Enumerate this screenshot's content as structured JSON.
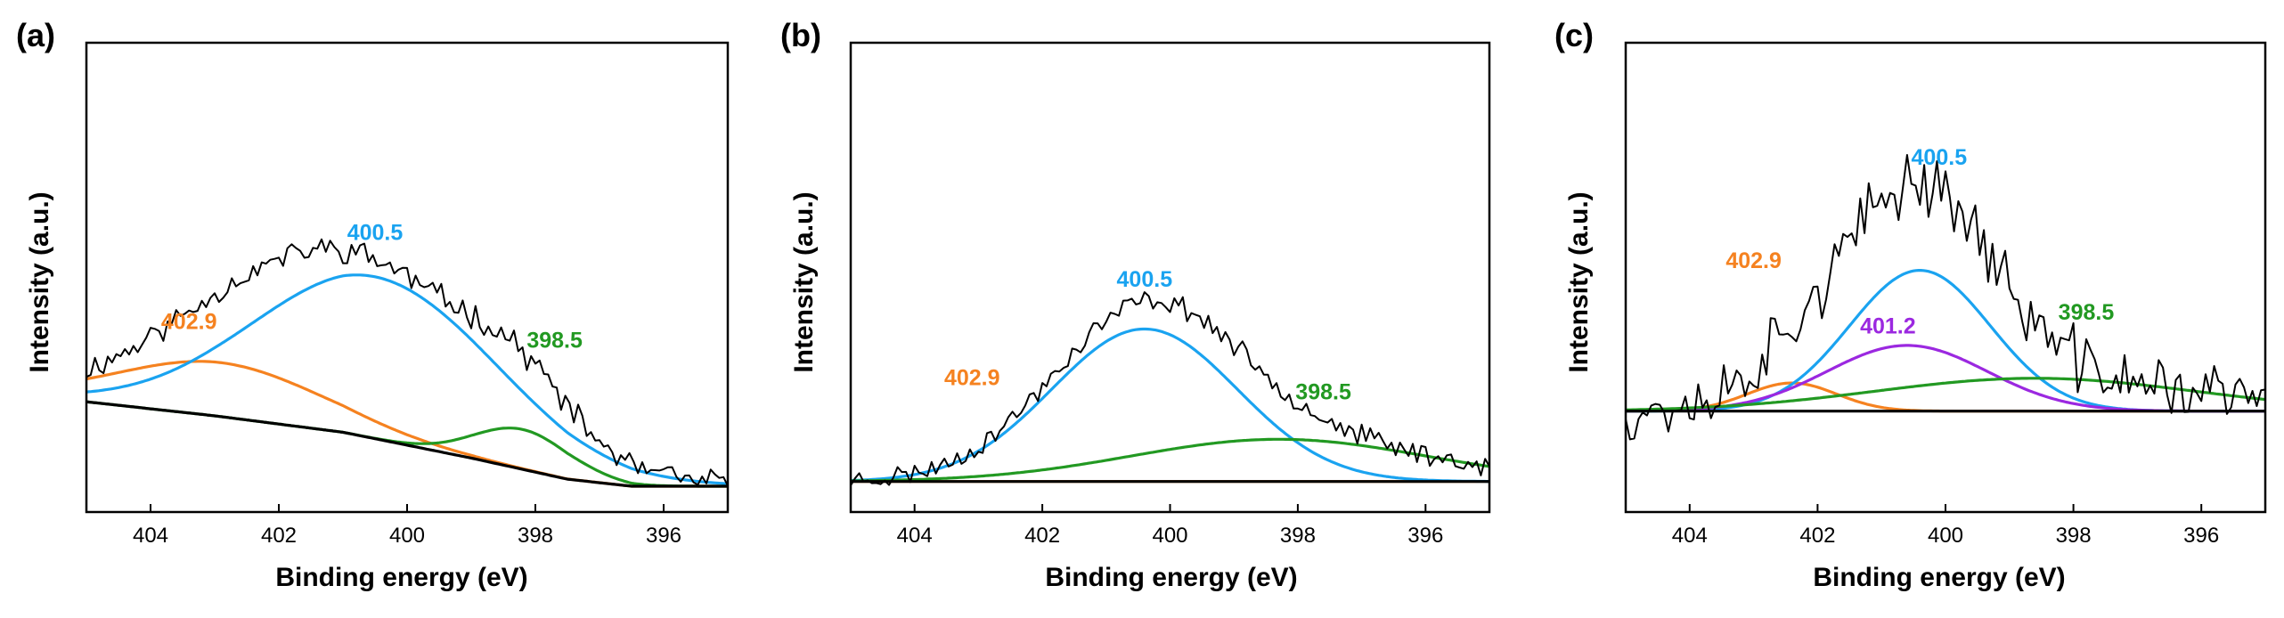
{
  "chart_data": [
    {
      "panel": "(a)",
      "type": "line",
      "xlabel": "Binding energy (eV)",
      "ylabel": "Intensity (a.u.)",
      "xlim": [
        405,
        395
      ],
      "ylim": [
        0,
        1
      ],
      "xticks": [
        404,
        402,
        400,
        398,
        396
      ],
      "xtick_labels": [
        "404",
        "402",
        "400",
        "398",
        "396"
      ],
      "series": [
        {
          "name": "data",
          "color": "#000000",
          "kind": "data",
          "noise": 0.022,
          "seed": 11,
          "sum": [
            "baseline",
            "402.9",
            "400.5",
            "398.5"
          ]
        },
        {
          "name": "baseline",
          "color": "#000000",
          "kind": "baseline",
          "x": [
            405,
            403,
            401,
            399,
            397.5,
            396.5,
            395
          ],
          "y": [
            0.235,
            0.205,
            0.17,
            0.115,
            0.07,
            0.055,
            0.055
          ]
        },
        {
          "name": "402.9",
          "color": "#F58220",
          "kind": "peak",
          "center": 402.9,
          "height": 0.115,
          "width": 1.6,
          "label": "402.9"
        },
        {
          "name": "400.5",
          "color": "#1AA3F0",
          "kind": "peak",
          "center": 400.5,
          "height": 0.345,
          "width": 1.9,
          "label": "400.5"
        },
        {
          "name": "398.5",
          "color": "#229922",
          "kind": "peak",
          "center": 398.2,
          "height": 0.085,
          "width": 0.75,
          "label": "398.5"
        }
      ],
      "annotations": [
        {
          "text": "400.5",
          "color": "#1AA3F0",
          "x": 400.5,
          "y": 0.58
        },
        {
          "text": "402.9",
          "color": "#F58220",
          "x": 403.4,
          "y": 0.39
        },
        {
          "text": "398.5",
          "color": "#229922",
          "x": 397.7,
          "y": 0.35
        }
      ]
    },
    {
      "panel": "(b)",
      "type": "line",
      "xlabel": "Binding energy (eV)",
      "ylabel": "Intensity (a.u.)",
      "xlim": [
        405,
        395
      ],
      "ylim": [
        0,
        1
      ],
      "xticks": [
        404,
        402,
        400,
        398,
        396
      ],
      "xtick_labels": [
        "404",
        "402",
        "400",
        "398",
        "396"
      ],
      "series": [
        {
          "name": "data",
          "color": "#000000",
          "kind": "data",
          "noise": 0.018,
          "seed": 23,
          "sum": [
            "baseline",
            "400.5",
            "398.5"
          ]
        },
        {
          "name": "baseline",
          "color": "#000000",
          "kind": "baseline",
          "x": [
            405,
            395
          ],
          "y": [
            0.065,
            0.065
          ]
        },
        {
          "name": "402.9",
          "color": "#F58220",
          "kind": "peak",
          "center": 402.9,
          "height": 0.0,
          "width": 1.5,
          "label": "402.9"
        },
        {
          "name": "400.5",
          "color": "#1AA3F0",
          "kind": "peak",
          "center": 400.4,
          "height": 0.325,
          "width": 1.45,
          "label": "400.5"
        },
        {
          "name": "398.5",
          "color": "#229922",
          "kind": "peak",
          "center": 398.3,
          "height": 0.09,
          "width": 2.3,
          "label": "398.5"
        }
      ],
      "annotations": [
        {
          "text": "400.5",
          "color": "#1AA3F0",
          "x": 400.4,
          "y": 0.48
        },
        {
          "text": "402.9",
          "color": "#F58220",
          "x": 403.1,
          "y": 0.27
        },
        {
          "text": "398.5",
          "color": "#229922",
          "x": 397.6,
          "y": 0.24
        }
      ]
    },
    {
      "panel": "(c)",
      "type": "line",
      "xlabel": "Binding energy (eV)",
      "ylabel": "Intensity (a.u.)",
      "xlim": [
        405,
        395
      ],
      "ylim": [
        0,
        1
      ],
      "xticks": [
        404,
        402,
        400,
        398,
        396
      ],
      "xtick_labels": [
        "404",
        "402",
        "400",
        "398",
        "396"
      ],
      "series": [
        {
          "name": "data",
          "color": "#000000",
          "kind": "data",
          "noise": 0.055,
          "seed": 37,
          "sum": [
            "baseline",
            "402.9",
            "401.2",
            "400.5",
            "398.5"
          ]
        },
        {
          "name": "baseline",
          "color": "#000000",
          "kind": "baseline",
          "x": [
            405,
            395
          ],
          "y": [
            0.215,
            0.215
          ]
        },
        {
          "name": "402.9",
          "color": "#F58220",
          "kind": "peak",
          "center": 402.4,
          "height": 0.06,
          "width": 0.7,
          "label": "402.9"
        },
        {
          "name": "400.5",
          "color": "#1AA3F0",
          "kind": "peak",
          "center": 400.4,
          "height": 0.3,
          "width": 1.1,
          "label": "400.5"
        },
        {
          "name": "401.2",
          "color": "#9B28E0",
          "kind": "peak",
          "center": 400.6,
          "height": 0.14,
          "width": 1.25,
          "label": "401.2"
        },
        {
          "name": "398.5",
          "color": "#229922",
          "kind": "peak",
          "center": 398.6,
          "height": 0.07,
          "width": 2.5,
          "label": "398.5"
        }
      ],
      "annotations": [
        {
          "text": "400.5",
          "color": "#1AA3F0",
          "x": 400.1,
          "y": 0.74
        },
        {
          "text": "402.9",
          "color": "#F58220",
          "x": 403.0,
          "y": 0.52
        },
        {
          "text": "401.2",
          "color": "#9B28E0",
          "x": 400.9,
          "y": 0.38
        },
        {
          "text": "398.5",
          "color": "#229922",
          "x": 397.8,
          "y": 0.41
        }
      ]
    }
  ]
}
